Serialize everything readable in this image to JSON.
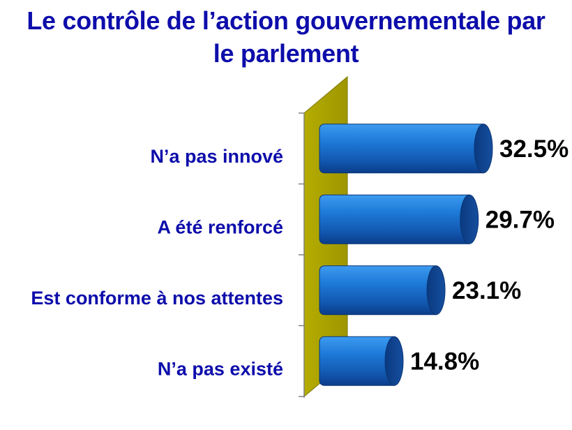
{
  "chart_data": {
    "type": "bar",
    "orientation": "horizontal",
    "title": "Le contrôle de l’action gouvernementale par le parlement",
    "title_lines": [
      "Le contrôle de l’action gouvernementale par",
      "le parlement"
    ],
    "categories": [
      "N’a pas innové",
      "A été renforcé",
      "Est conforme à nos attentes",
      "N’a pas existé"
    ],
    "values": [
      32.5,
      29.7,
      23.1,
      14.8
    ],
    "value_labels": [
      "32.5%",
      "29.7%",
      "23.1%",
      "14.8%"
    ],
    "xlabel": "",
    "ylabel": "",
    "xlim": [
      0,
      32.5
    ],
    "grid": false,
    "colors": {
      "bar": "#1a6fd0",
      "bar_dark": "#0b3d8a",
      "wall": "#a8a000",
      "title": "#0d0dab",
      "category_text": "#0d0dab",
      "value_text": "#000000"
    }
  }
}
